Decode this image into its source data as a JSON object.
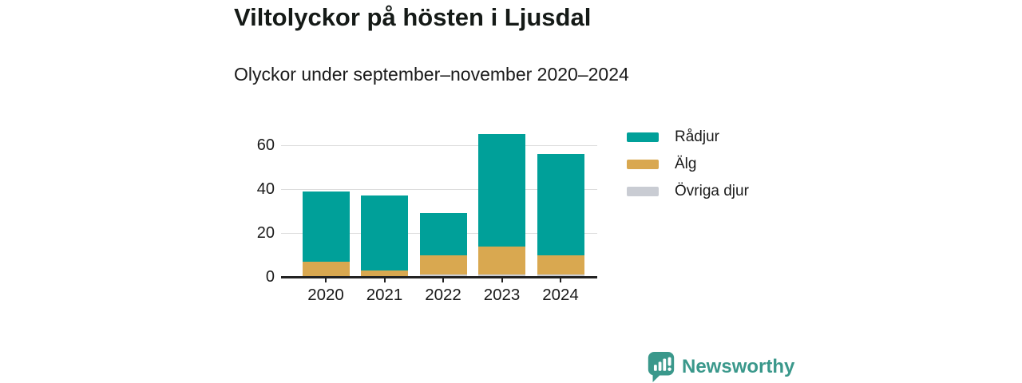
{
  "header": {
    "title": "Viltolyckor på hösten i Ljusdal",
    "subtitle": "Olyckor under september–november 2020–2024"
  },
  "chart_data": {
    "type": "bar",
    "stacked": true,
    "title": "Viltolyckor på hösten i Ljusdal",
    "subtitle": "Olyckor under september–november 2020–2024",
    "categories": [
      "2020",
      "2021",
      "2022",
      "2023",
      "2024"
    ],
    "series": [
      {
        "name": "Rådjur",
        "color": "#00A099",
        "values": [
          32,
          34,
          19,
          51,
          46
        ]
      },
      {
        "name": "Älg",
        "color": "#D9A850",
        "values": [
          7,
          3,
          9,
          13,
          9
        ]
      },
      {
        "name": "Övriga djur",
        "color": "#C9CCD3",
        "values": [
          0,
          0,
          1,
          1,
          1
        ]
      }
    ],
    "stack_order_bottom_to_top": [
      "Övriga djur",
      "Älg",
      "Rådjur"
    ],
    "totals": [
      39,
      37,
      29,
      65,
      56
    ],
    "xlabel": "",
    "ylabel": "",
    "y_ticks": [
      0,
      20,
      40,
      60
    ],
    "ylim": [
      0,
      67
    ],
    "grid": "horizontal gridlines at 20, 40, 60",
    "legend_position": "right"
  },
  "colors": {
    "axis": "#222222",
    "gridline": "#DDDDDD",
    "text": "#1A1A1A",
    "brand_teal": "#3A988B"
  },
  "footer": {
    "brand": "Newsworthy"
  }
}
